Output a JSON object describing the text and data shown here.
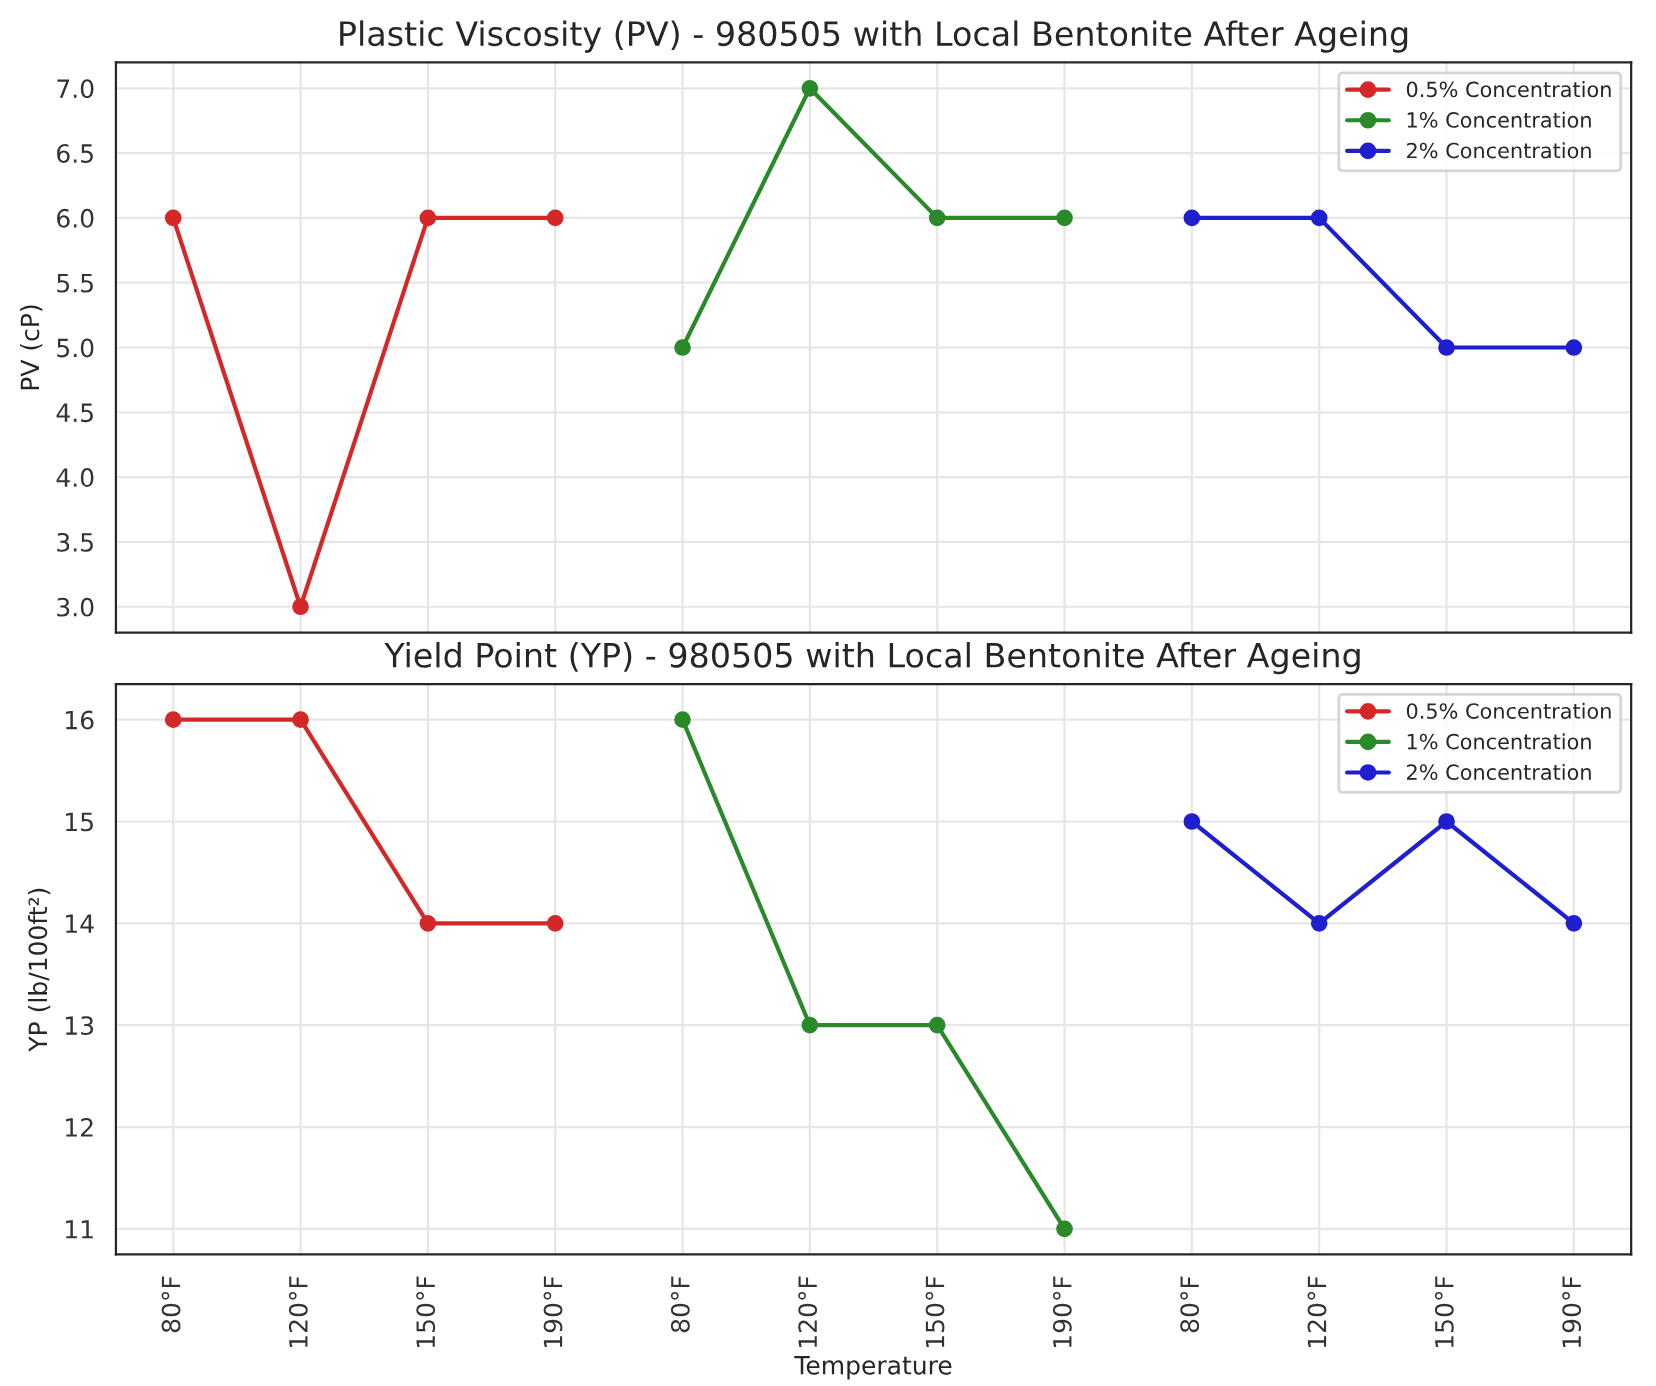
{
  "chart_data": [
    {
      "type": "line",
      "title": "Plastic Viscosity (PV) - 980505 with Local Bentonite After Ageing",
      "ylabel": "PV (cP)",
      "categories": [
        null,
        null,
        null,
        null,
        null,
        null,
        null,
        null,
        null,
        null,
        null,
        null
      ],
      "series": [
        {
          "name": "0.5% Concentration",
          "color": "#d62728",
          "values": [
            6,
            3,
            6,
            6,
            null,
            null,
            null,
            null,
            null,
            null,
            null,
            null
          ]
        },
        {
          "name": "1% Concentration",
          "color": "#2a8a2a",
          "values": [
            null,
            null,
            null,
            null,
            5,
            7,
            6,
            6,
            null,
            null,
            null,
            null
          ]
        },
        {
          "name": "2% Concentration",
          "color": "#1f1fd0",
          "values": [
            null,
            null,
            null,
            null,
            null,
            null,
            null,
            null,
            6,
            6,
            5,
            5
          ]
        }
      ],
      "ylim": [
        2.8,
        7.2
      ],
      "yticks": [
        {
          "value": 3,
          "label": "3.0"
        },
        {
          "value": 3.5,
          "label": "3.5"
        },
        {
          "value": 4,
          "label": "4.0"
        },
        {
          "value": 4.5,
          "label": "4.5"
        },
        {
          "value": 5,
          "label": "5.0"
        },
        {
          "value": 5.5,
          "label": "5.5"
        },
        {
          "value": 6,
          "label": "6.0"
        },
        {
          "value": 6.5,
          "label": "6.5"
        },
        {
          "value": 7,
          "label": "7.0"
        }
      ],
      "tick_labels": "y",
      "grid": true,
      "legend": "top right",
      "marker": "circle",
      "line_style": "solid"
    },
    {
      "type": "line",
      "title": "Yield Point (YP) - 980505 with Local Bentonite After Ageing",
      "xlabel": "Temperature",
      "ylabel": "YP (lb/100ft²)",
      "categories": [
        "80°F",
        "120°F",
        "150°F",
        "190°F",
        "80°F",
        "120°F",
        "150°F",
        "190°F",
        "80°F",
        "120°F",
        "150°F",
        "190°F"
      ],
      "series": [
        {
          "name": "0.5% Concentration",
          "color": "#d62728",
          "values": [
            16,
            16,
            14,
            14,
            null,
            null,
            null,
            null,
            null,
            null,
            null,
            null
          ]
        },
        {
          "name": "1% Concentration",
          "color": "#2a8a2a",
          "values": [
            null,
            null,
            null,
            null,
            16,
            13,
            13,
            11,
            null,
            null,
            null,
            null
          ]
        },
        {
          "name": "2% Concentration",
          "color": "#1f1fd0",
          "values": [
            null,
            null,
            null,
            null,
            null,
            null,
            null,
            null,
            15,
            14,
            15,
            14
          ]
        }
      ],
      "ylim": [
        10.75,
        16.35
      ],
      "yticks": [
        11,
        12,
        13,
        14,
        15,
        16
      ],
      "grid": true,
      "legend": "top right",
      "marker": "circle",
      "line_style": "solid"
    }
  ]
}
